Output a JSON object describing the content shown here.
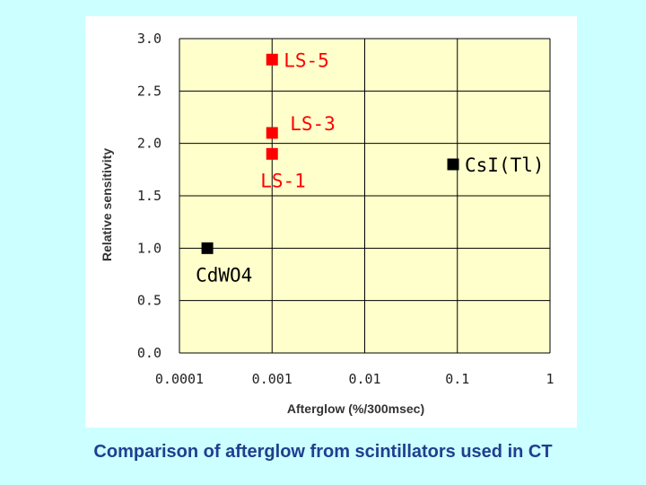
{
  "caption": "Comparison of afterglow from scintillators used in CT",
  "chart_data": {
    "type": "scatter",
    "xscale": "log",
    "xlabel": "Afterglow (%/300msec)",
    "ylabel": "Relative sensitivity",
    "xlim": [
      0.0001,
      1
    ],
    "ylim": [
      0.0,
      3.0
    ],
    "grid": true,
    "x_ticks": [
      {
        "value": 0.0001,
        "label": "0.0001"
      },
      {
        "value": 0.001,
        "label": "0.001"
      },
      {
        "value": 0.01,
        "label": "0.01"
      },
      {
        "value": 0.1,
        "label": "0.1"
      },
      {
        "value": 1,
        "label": "1"
      }
    ],
    "y_ticks": [
      {
        "value": 0.0,
        "label": "0.0"
      },
      {
        "value": 0.5,
        "label": "0.5"
      },
      {
        "value": 1.0,
        "label": "1.0"
      },
      {
        "value": 1.5,
        "label": "1.5"
      },
      {
        "value": 2.0,
        "label": "2.0"
      },
      {
        "value": 2.5,
        "label": "2.5"
      },
      {
        "value": 3.0,
        "label": "3.0"
      }
    ],
    "points": [
      {
        "label": "LS-5",
        "x": 0.001,
        "y": 2.8,
        "color": "#ff0000",
        "label_pos": "right"
      },
      {
        "label": "LS-3",
        "x": 0.001,
        "y": 2.1,
        "color": "#ff0000",
        "label_pos": "above-right"
      },
      {
        "label": "LS-1",
        "x": 0.001,
        "y": 1.9,
        "color": "#ff0000",
        "label_pos": "below"
      },
      {
        "label": "CsI(Tl)",
        "x": 0.09,
        "y": 1.8,
        "color": "#000000",
        "label_pos": "right"
      },
      {
        "label": "CdWO4",
        "x": 0.0002,
        "y": 1.0,
        "color": "#000000",
        "label_pos": "below"
      }
    ],
    "colors": {
      "plot_bg": "#ffffcc",
      "grid": "#000000",
      "figure_bg": "#ffffff",
      "label_ls": "#ff0000",
      "label_black": "#000000"
    }
  }
}
